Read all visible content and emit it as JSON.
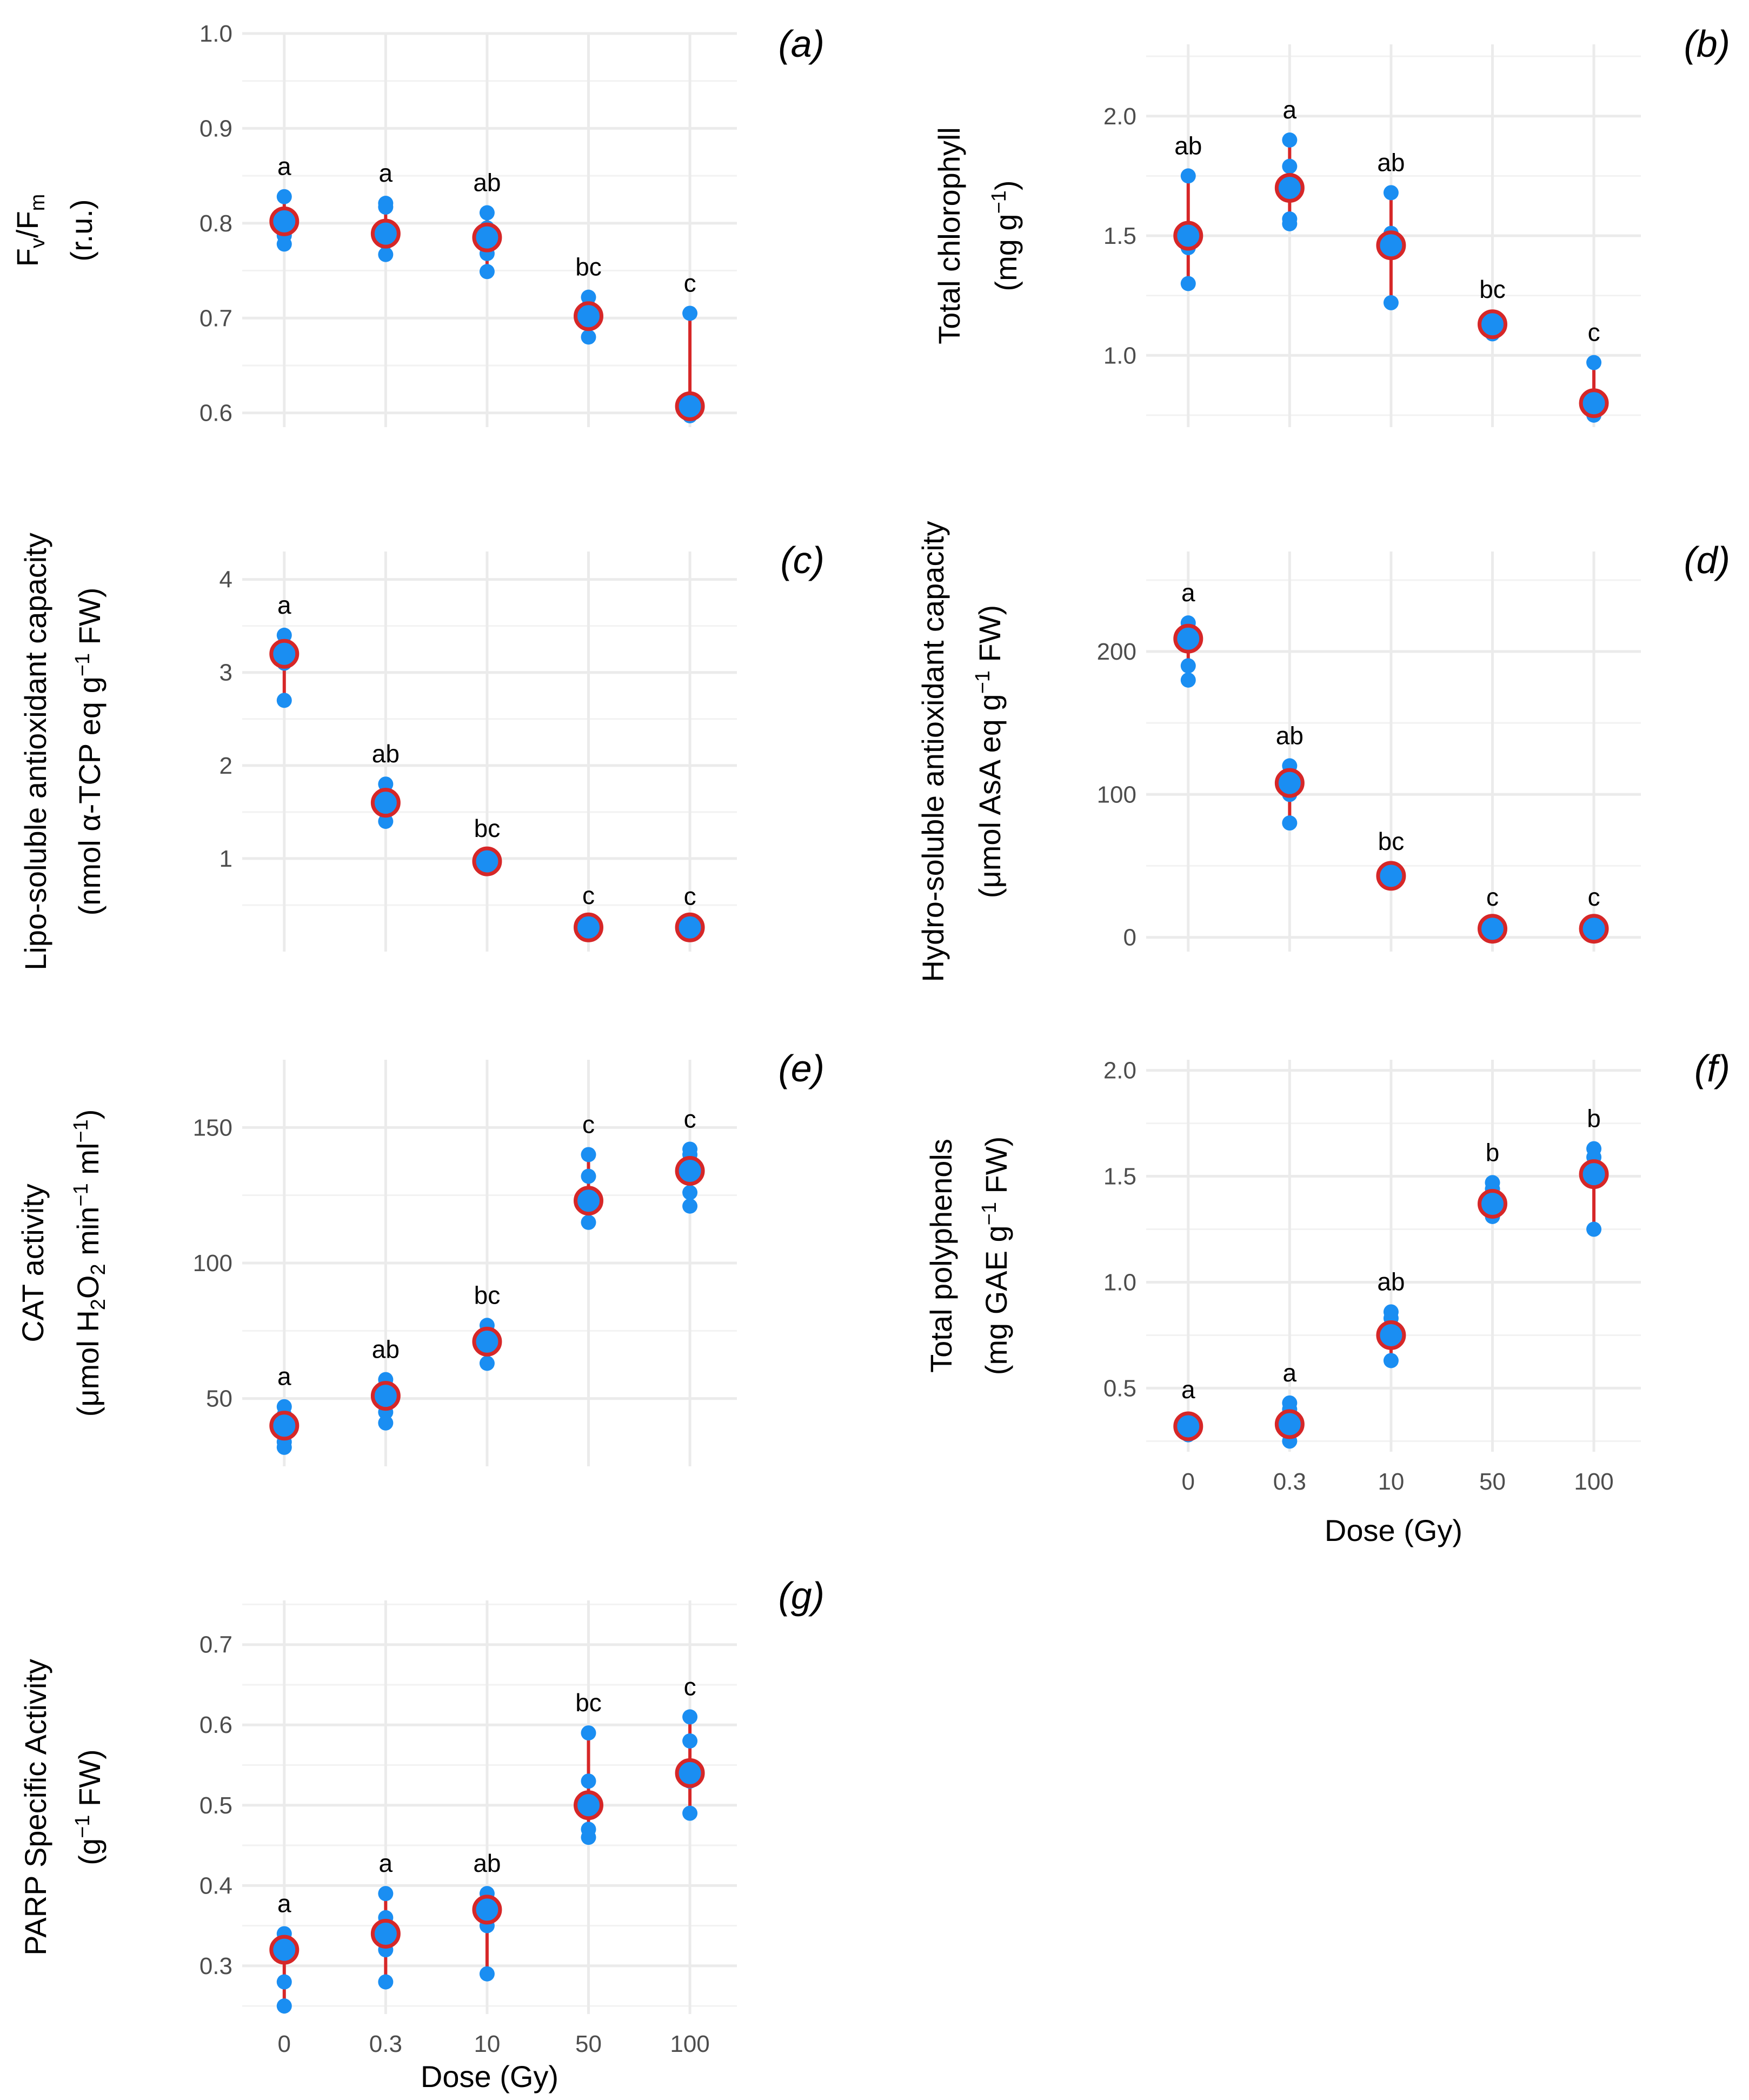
{
  "colors": {
    "point": "#1a8ef2",
    "mean_fill": "#1a8ef2",
    "mean_stroke": "#d62728",
    "range_line": "#d62728",
    "grid": "#ebebeb",
    "tick_text": "#4d4d4d"
  },
  "chart_data": [
    {
      "id": "a",
      "tag": "(a)",
      "type": "scatter",
      "ylabel_lines": [
        "Fv/Fm",
        "(r.u.)"
      ],
      "xlabel": "",
      "categories": [
        "0",
        "0.3",
        "10",
        "50",
        "100"
      ],
      "show_x_ticks": false,
      "ylim": [
        0.585,
        1.0
      ],
      "yticks": [
        0.6,
        0.7,
        0.8,
        0.9,
        1.0
      ],
      "ytick_labels": [
        "0.6",
        "0.7",
        "0.8",
        "0.9",
        "1.0"
      ],
      "points": [
        [
          0.828,
          0.808,
          0.795,
          0.787,
          0.778
        ],
        [
          0.821,
          0.817,
          0.79,
          0.78,
          0.767
        ],
        [
          0.811,
          0.795,
          0.785,
          0.768,
          0.749
        ],
        [
          0.722,
          0.712,
          0.703,
          0.695,
          0.68
        ],
        [
          0.705,
          0.612,
          0.605,
          0.6,
          0.597
        ]
      ],
      "means": [
        0.802,
        0.789,
        0.785,
        0.702,
        0.607
      ],
      "ranges": [
        [
          0.778,
          0.828
        ],
        [
          0.767,
          0.821
        ],
        [
          0.749,
          0.811
        ],
        [
          0.68,
          0.722
        ],
        [
          0.597,
          0.705
        ]
      ],
      "letters": [
        "a",
        "a",
        "ab",
        "bc",
        "c"
      ]
    },
    {
      "id": "b",
      "tag": "(b)",
      "type": "scatter",
      "ylabel_lines": [
        "Total chlorophyll",
        "(mg g−1)"
      ],
      "xlabel": "",
      "categories": [
        "0",
        "0.3",
        "10",
        "50",
        "100"
      ],
      "show_x_ticks": false,
      "ylim": [
        0.7,
        2.3
      ],
      "yticks": [
        1.0,
        1.5,
        2.0
      ],
      "ytick_labels": [
        "1.0",
        "1.5",
        "2.0"
      ],
      "points": [
        [
          1.75,
          1.53,
          1.51,
          1.45,
          1.3
        ],
        [
          1.9,
          1.79,
          1.7,
          1.57,
          1.55
        ],
        [
          1.68,
          1.51,
          1.48,
          1.45,
          1.22
        ],
        [
          1.15,
          1.14,
          1.12,
          1.1,
          1.09
        ],
        [
          0.97,
          0.82,
          0.79,
          0.77,
          0.75
        ]
      ],
      "means": [
        1.5,
        1.7,
        1.46,
        1.13,
        0.8
      ],
      "ranges": [
        [
          1.3,
          1.75
        ],
        [
          1.55,
          1.9
        ],
        [
          1.22,
          1.68
        ],
        [
          1.09,
          1.15
        ],
        [
          0.75,
          0.97
        ]
      ],
      "letters": [
        "ab",
        "a",
        "ab",
        "bc",
        "c"
      ]
    },
    {
      "id": "c",
      "tag": "(c)",
      "type": "scatter",
      "ylabel_lines": [
        "Lipo-soluble antioxidant capacity",
        "(nmol α-TCP eq g−1 FW)"
      ],
      "xlabel": "",
      "categories": [
        "0",
        "0.3",
        "10",
        "50",
        "100"
      ],
      "show_x_ticks": false,
      "ylim": [
        0.0,
        4.3
      ],
      "yticks": [
        1,
        2,
        3,
        4
      ],
      "ytick_labels": [
        "1",
        "2",
        "3",
        "4"
      ],
      "points": [
        [
          3.4,
          3.3,
          3.2,
          3.1,
          2.7
        ],
        [
          1.8,
          1.7,
          1.6,
          1.5,
          1.4
        ],
        [
          1.0,
          0.98,
          0.97,
          0.96,
          0.95
        ],
        [
          0.28,
          0.27,
          0.26,
          0.26,
          0.25
        ],
        [
          0.27,
          0.26,
          0.26,
          0.25,
          0.25
        ]
      ],
      "means": [
        3.2,
        1.6,
        0.97,
        0.26,
        0.26
      ],
      "ranges": [
        [
          2.7,
          3.4
        ],
        [
          1.4,
          1.8
        ],
        [
          0.95,
          1.0
        ],
        [
          0.25,
          0.28
        ],
        [
          0.25,
          0.27
        ]
      ],
      "letters": [
        "a",
        "ab",
        "bc",
        "c",
        "c"
      ]
    },
    {
      "id": "d",
      "tag": "(d)",
      "type": "scatter",
      "ylabel_lines": [
        "Hydro-soluble antioxidant capacity",
        "(μmol AsA eq  g−1 FW)"
      ],
      "xlabel": "",
      "categories": [
        "0",
        "0.3",
        "10",
        "50",
        "100"
      ],
      "show_x_ticks": false,
      "ylim": [
        -10,
        270
      ],
      "yticks": [
        0,
        100,
        200
      ],
      "ytick_labels": [
        "0",
        "100",
        "200"
      ],
      "points": [
        [
          220,
          212,
          208,
          190,
          180
        ],
        [
          120,
          110,
          105,
          100,
          80
        ],
        [
          46,
          44,
          43,
          41,
          39
        ],
        [
          7,
          6,
          6,
          5,
          5
        ],
        [
          7,
          6,
          6,
          5,
          5
        ]
      ],
      "means": [
        209,
        108,
        43,
        6,
        6
      ],
      "ranges": [
        [
          180,
          220
        ],
        [
          80,
          120
        ],
        [
          39,
          46
        ],
        [
          5,
          7
        ],
        [
          5,
          7
        ]
      ],
      "letters": [
        "a",
        "ab",
        "bc",
        "c",
        "c"
      ]
    },
    {
      "id": "e",
      "tag": "(e)",
      "type": "scatter",
      "ylabel_lines": [
        "CAT activity",
        "(μmol H2O2 min−1 ml−1)"
      ],
      "xlabel": "",
      "categories": [
        "0",
        "0.3",
        "10",
        "50",
        "100"
      ],
      "show_x_ticks": false,
      "ylim": [
        25,
        175
      ],
      "yticks": [
        50,
        100,
        150
      ],
      "ytick_labels": [
        "50",
        "100",
        "150"
      ],
      "points": [
        [
          47,
          44,
          40,
          34,
          32
        ],
        [
          57,
          55,
          52,
          45,
          41
        ],
        [
          77,
          74,
          71,
          69,
          63
        ],
        [
          140,
          132,
          124,
          122,
          115
        ],
        [
          142,
          140,
          134,
          126,
          121
        ]
      ],
      "means": [
        40,
        51,
        71,
        123,
        134
      ],
      "ranges": [
        [
          32,
          47
        ],
        [
          41,
          57
        ],
        [
          63,
          77
        ],
        [
          115,
          140
        ],
        [
          121,
          142
        ]
      ],
      "letters": [
        "a",
        "ab",
        "bc",
        "c",
        "c"
      ]
    },
    {
      "id": "f",
      "tag": "(f)",
      "type": "scatter",
      "ylabel_lines": [
        "Total polyphenols",
        "(mg GAE g−1 FW)"
      ],
      "xlabel": "Dose (Gy)",
      "categories": [
        "0",
        "0.3",
        "10",
        "50",
        "100"
      ],
      "show_x_ticks": true,
      "ylim": [
        0.2,
        2.05
      ],
      "yticks": [
        0.5,
        1.0,
        1.5,
        2.0
      ],
      "ytick_labels": [
        "0.5",
        "1.0",
        "1.5",
        "2.0"
      ],
      "points": [
        [
          0.35,
          0.34,
          0.32,
          0.3,
          0.28
        ],
        [
          0.43,
          0.4,
          0.34,
          0.3,
          0.25
        ],
        [
          0.86,
          0.83,
          0.78,
          0.75,
          0.63
        ],
        [
          1.47,
          1.44,
          1.38,
          1.35,
          1.31
        ],
        [
          1.63,
          1.59,
          1.51,
          1.48,
          1.25
        ]
      ],
      "means": [
        0.32,
        0.33,
        0.75,
        1.37,
        1.51
      ],
      "ranges": [
        [
          0.28,
          0.35
        ],
        [
          0.25,
          0.43
        ],
        [
          0.63,
          0.86
        ],
        [
          1.31,
          1.47
        ],
        [
          1.25,
          1.63
        ]
      ],
      "letters": [
        "a",
        "a",
        "ab",
        "b",
        "b"
      ]
    },
    {
      "id": "g",
      "tag": "(g)",
      "type": "scatter",
      "ylabel_lines": [
        "PARP Specific Activity",
        "(g−1 FW)"
      ],
      "xlabel": "Dose (Gy)",
      "categories": [
        "0",
        "0.3",
        "10",
        "50",
        "100"
      ],
      "show_x_ticks": true,
      "ylim": [
        0.24,
        0.755
      ],
      "yticks": [
        0.3,
        0.4,
        0.5,
        0.6,
        0.7
      ],
      "ytick_labels": [
        "0.3",
        "0.4",
        "0.5",
        "0.6",
        "0.7"
      ],
      "points": [
        [
          0.34,
          0.33,
          0.32,
          0.28,
          0.25
        ],
        [
          0.39,
          0.36,
          0.34,
          0.32,
          0.28
        ],
        [
          0.39,
          0.38,
          0.37,
          0.35,
          0.29
        ],
        [
          0.59,
          0.53,
          0.5,
          0.47,
          0.46
        ],
        [
          0.61,
          0.58,
          0.54,
          0.53,
          0.49
        ]
      ],
      "means": [
        0.32,
        0.34,
        0.37,
        0.5,
        0.54
      ],
      "ranges": [
        [
          0.25,
          0.34
        ],
        [
          0.28,
          0.39
        ],
        [
          0.29,
          0.39
        ],
        [
          0.46,
          0.59
        ],
        [
          0.49,
          0.61
        ]
      ],
      "letters": [
        "a",
        "a",
        "ab",
        "bc",
        "c"
      ]
    }
  ]
}
